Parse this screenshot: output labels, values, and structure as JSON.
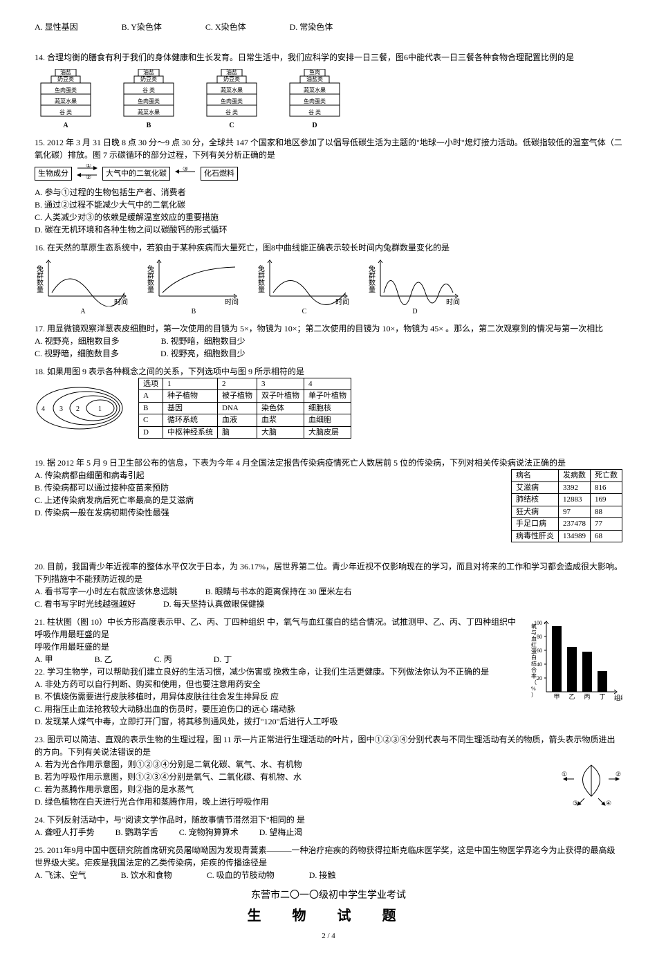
{
  "q_top_options": {
    "a": "A. 显性基因",
    "b": "B. Y染色体",
    "c": "C. X染色体",
    "d": "D. 常染色体"
  },
  "q14": {
    "text": "14. 合理均衡的膳食有利于我们的身体健康和生长发育。日常生活中，我们应科学的安排一日三餐，图6中能代表一日三餐各种食物合理配置比例的是",
    "pyramids": [
      {
        "label": "A",
        "layers": [
          "油盐",
          "奶豆类",
          "鱼肉蛋类",
          "蔬菜水果",
          "谷  类"
        ]
      },
      {
        "label": "B",
        "layers": [
          "油盐",
          "奶豆类",
          "谷  类",
          "鱼肉蛋类",
          "蔬菜水果"
        ]
      },
      {
        "label": "C",
        "layers": [
          "油盐",
          "奶豆类",
          "蔬菜水果",
          "鱼肉蛋类",
          "谷  类"
        ]
      },
      {
        "label": "D",
        "layers": [
          "鱼肉",
          "油盐类",
          "蔬菜水果",
          "鱼肉蛋类",
          "谷  类"
        ]
      }
    ]
  },
  "q15": {
    "text": "15. 2012 年 3 月 31 日晚 8 点 30 分～9 点 30 分，全球共 147 个国家和地区参加了以倡导低碳生活为主题的\"地球一小时\"熄灯接力活动。低碳指较低的温室气体（二氧化碳）排放。图 7 示碳循环的部分过程，下列有关分析正确的是",
    "boxes": {
      "left": "生物成分",
      "mid": "大气中的二氧化碳",
      "right": "化石燃料",
      "a1": "①",
      "a2": "②",
      "a3": "③"
    },
    "opts": {
      "a": "A. 参与①过程的生物包括生产者、消费者",
      "b": "B. 通过②过程不能减少大气中的二氧化碳",
      "c": "C. 人类减少对③的依赖是缓解温室效应的重要措施",
      "d": "D. 碳在无机环境和各种生物之间以碳酸钙的形式循环"
    }
  },
  "q16": {
    "text": "16. 在天然的草原生态系统中，若狼由于某种疾病而大量死亡，图8中曲线能正确表示较长时间内兔群数量变化的是",
    "ylabel": "兔群数量",
    "xlabel": "时间",
    "labels": [
      "A",
      "B",
      "C",
      "D"
    ]
  },
  "q17": {
    "text": "17. 用显微镜观察洋葱表皮细胞时，第一次使用的目镜为 5×，物镜为 10×；第二次使用的目镜为 10×，物镜为 45× 。那么，第二次观察到的情况与第一次相比",
    "opts": {
      "a": "A. 视野亮，细胞数目多",
      "b": "B. 视野暗，细胞数目少",
      "c": "C. 视野暗，细胞数目多",
      "d": "D. 视野亮，细胞数目少"
    }
  },
  "q18": {
    "text": "18. 如果用图 9 表示各种概念之间的关系，下列选项中与图 9 所示相符的是",
    "headers": [
      "选项",
      "1",
      "2",
      "3",
      "4"
    ],
    "rows": [
      [
        "A",
        "种子植物",
        "被子植物",
        "双子叶植物",
        "单子叶植物"
      ],
      [
        "B",
        "基因",
        "DNA",
        "染色体",
        "细胞核"
      ],
      [
        "C",
        "循环系统",
        "血液",
        "血浆",
        "血细胞"
      ],
      [
        "D",
        "中枢神经系统",
        "脑",
        "大脑",
        "大脑皮层"
      ]
    ]
  },
  "q19": {
    "text": "19. 据 2012 年 5 月 9 日卫生部公布的信息，下表为今年 4 月全国法定报告传染病疫情死亡人数居前 5 位的传染病，下列对相关传染病说法正确的是",
    "opts": {
      "a": "A. 传染病都由细菌和病毒引起",
      "b": "B. 传染病都可以通过接种疫苗来预防",
      "c": "C. 上述传染病发病后死亡率最高的是艾滋病",
      "d": "D. 传染病一般在发病初期传染性最强"
    },
    "headers": [
      "病名",
      "发病数",
      "死亡数"
    ],
    "rows": [
      [
        "艾滋病",
        "3392",
        "816"
      ],
      [
        "肺结核",
        "12883",
        "169"
      ],
      [
        "狂犬病",
        "97",
        "88"
      ],
      [
        "手足口病",
        "237478",
        "77"
      ],
      [
        "病毒性肝炎",
        "134989",
        "68"
      ]
    ]
  },
  "q20": {
    "text": "20. 目前，我国青少年近视率的整体水平仅次于日本，为 36.17%，居世界第二位。青少年近视不仅影响现在的学习，而且对将来的工作和学习都会造成很大影响。下列措施中不能预防近视的是",
    "opts": {
      "a": "A. 看书写字一小时左右就应该休息远眺",
      "b": "B. 眼睛与书本的距离保持在 30 厘米左右",
      "c": "C. 看书写字时光线越强越好",
      "d": "D. 每天坚持认真做眼保健操"
    }
  },
  "q21": {
    "text_left": "21. 柱状图（图 10）中长方形高度表示甲、乙、丙、丁四种组织",
    "text_right": "中，氧气与血红蛋白的结合情况。试推测甲、乙、丙、丁四种组织中呼吸作用最旺盛的是",
    "opts": {
      "a": "A. 甲",
      "b": "B. 乙",
      "c": "C. 丙",
      "d": "D. 丁"
    },
    "chart": {
      "ylabel": "氧与血红蛋白结合率（%）",
      "yticks": [
        20,
        40,
        60,
        80,
        100
      ],
      "cats": [
        "甲",
        "乙",
        "丙",
        "丁"
      ],
      "xlabel": "组织",
      "values": [
        95,
        65,
        58,
        30
      ],
      "bar_color": "#000000"
    }
  },
  "q22": {
    "text_left": "22. 学习生物学，可以帮助我们建立良好的生活习惯，减少伤害或",
    "text_right": "挽救生命，让我们生活更健康。下列做法你认为不正确的是",
    "opts": {
      "a": "A. 非处方药可以自行判断、购买和使用，但也要注意用药安全",
      "b_left": "B. 不慎烧伤需要进行皮肤移植时，用异体皮肤往往会发生排异反",
      "b_right": "应",
      "c_left": "C. 用指压止血法抢救较大动脉出血的伤员时，要压迫伤口的远心",
      "c_right": "端动脉",
      "d": "D. 发现某人煤气中毒，立即打开门窗，将其移到通风处，拨打\"120\"后进行人工呼吸"
    }
  },
  "q23": {
    "text": "23. 图示可以简洁、直观的表示生物的生理过程，图 11 示一片正常进行生理活动的叶片，图中①②③④分别代表与不同生理活动有关的物质，箭头表示物质进出的方向。下列有关说法错误的是",
    "opts": {
      "a": "A. 若为光合作用示意图，则①②③④分别是二氧化碳、氧气、水、有机物",
      "b": "B. 若为呼吸作用示意图，则①②③④分别是氧气、二氧化碳、有机物、水",
      "c": "C. 若为蒸腾作用示意图，则②指的是水蒸气",
      "d": "D. 绿色植物在白天进行光合作用和蒸腾作用，晚上进行呼吸作用"
    }
  },
  "q24": {
    "text_left": "24. 下列反射活动中，与\"阅读文学作品时，随故事情节潸然泪下\"相同的",
    "text_right": "是",
    "opts": {
      "a": "A. 聋哑人打手势",
      "b": "B. 鹦鹉学舌",
      "c": "C. 宠物狗算算术",
      "d": "D. 望梅止渴"
    }
  },
  "q25": {
    "text": "25. 2011年9月中国中医研究院首席研究员屠呦呦因为发现青蒿素———一种治疗疟疾的药物获得拉斯克临床医学奖，这是中国生物医学界迄今为止获得的最高级世界级大奖。疟疾是我国法定的乙类传染病，疟疾的传播途径是",
    "opts": {
      "a": "A. 飞沫、空气",
      "b": "B. 饮水和食物",
      "c": "C. 吸血的节肢动物",
      "d": "D. 接触"
    }
  },
  "footer": {
    "line1": "东营市二〇一〇级初中学生学业考试",
    "line2": "生 物 试 题",
    "page": "2 / 4"
  }
}
